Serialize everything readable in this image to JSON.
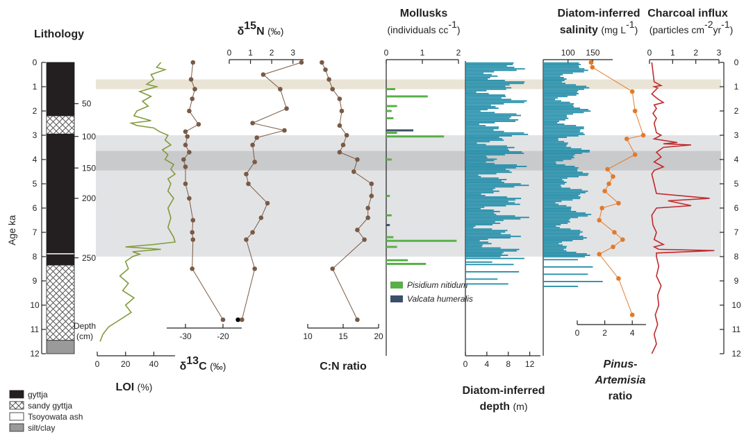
{
  "chart_data": {
    "type": "line",
    "shared_y": {
      "label": "Age ka",
      "range": [
        0,
        12
      ],
      "ticks": [
        0,
        1,
        2,
        3,
        4,
        5,
        6,
        7,
        8,
        9,
        10,
        11,
        12
      ]
    },
    "depth": {
      "label": "Depth",
      "unit": "(cm)",
      "ticks": [
        50,
        100,
        150,
        200,
        250
      ]
    },
    "colors": {
      "loi": "#7f9a3a",
      "isotope": "#7a5a45",
      "mollusk_green": "#59b048",
      "mollusk_dark": "#3c4f6a",
      "diatom": "#1f8ca8",
      "pine": "#e27a2a",
      "charcoal": "#c0282a"
    },
    "shaded_bands": [
      {
        "from": 0.7,
        "to": 1.1,
        "color": "#e9e4d6"
      },
      {
        "from": 3.0,
        "to": 8.0,
        "color": "#e2e3e5"
      },
      {
        "from": 3.65,
        "to": 4.45,
        "color": "#c9cacc"
      }
    ],
    "lithology": {
      "title": "Lithology",
      "units": [
        {
          "from": 0.0,
          "to": 2.2,
          "type": "gyttja"
        },
        {
          "from": 2.2,
          "to": 2.95,
          "type": "sandy gyttja"
        },
        {
          "from": 2.95,
          "to": 7.85,
          "type": "gyttja"
        },
        {
          "from": 7.85,
          "to": 7.92,
          "type": "Tsoyowata ash"
        },
        {
          "from": 7.92,
          "to": 8.35,
          "type": "gyttja"
        },
        {
          "from": 8.35,
          "to": 11.45,
          "type": "sandy gyttja"
        },
        {
          "from": 11.45,
          "to": 12.0,
          "type": "silt/clay"
        }
      ],
      "legend": [
        "gyttja",
        "sandy gyttja",
        "Tsoyowata ash",
        "silt/clay"
      ]
    },
    "panels": [
      {
        "id": "loi",
        "title": "LOI",
        "unit": "(%)",
        "xlim": [
          0,
          55
        ],
        "ticks": [
          0,
          20,
          40
        ],
        "age": [
          0.0,
          0.2,
          0.3,
          0.5,
          0.7,
          0.9,
          1.0,
          1.2,
          1.4,
          1.6,
          1.8,
          2.0,
          2.2,
          2.4,
          2.5,
          2.6,
          2.7,
          2.85,
          3.0,
          3.2,
          3.4,
          3.6,
          3.8,
          4.0,
          4.2,
          4.4,
          4.6,
          4.8,
          5.0,
          5.3,
          5.6,
          6.0,
          6.4,
          6.8,
          7.2,
          7.4,
          7.5,
          7.6,
          7.7,
          7.8,
          7.9,
          8.0,
          8.2,
          8.5,
          8.8,
          9.1,
          9.4,
          9.7,
          10.0,
          10.3,
          10.6,
          10.9,
          11.2,
          11.5
        ],
        "values": [
          45,
          42,
          48,
          38,
          40,
          35,
          42,
          30,
          38,
          32,
          36,
          28,
          26,
          38,
          24,
          28,
          40,
          44,
          50,
          48,
          52,
          46,
          50,
          48,
          54,
          52,
          55,
          50,
          52,
          50,
          54,
          50,
          52,
          50,
          54,
          55,
          40,
          20,
          45,
          25,
          30,
          25,
          20,
          22,
          16,
          22,
          18,
          26,
          20,
          24,
          16,
          8,
          4,
          2
        ]
      },
      {
        "id": "d13c",
        "title": "δ13C",
        "unit": "(‰)",
        "xlim": [
          -35,
          -15
        ],
        "ticks": [
          -30,
          -20
        ],
        "age": [
          0,
          0.7,
          1.1,
          1.5,
          2.0,
          2.55,
          2.85,
          3.05,
          3.4,
          3.7,
          4.0,
          4.3,
          5.0,
          5.6,
          6.5,
          7.0,
          7.3,
          8.5,
          10.6
        ],
        "values": [
          -28,
          -28.5,
          -27.5,
          -28.2,
          -29,
          -26.5,
          -30,
          -29.5,
          -30,
          -29,
          -30.5,
          -30,
          -30,
          -29,
          -28,
          -28.2,
          -28,
          -28.2,
          -20
        ]
      },
      {
        "id": "d15n",
        "title": "δ15N",
        "unit": "(‰)",
        "xlim": [
          0,
          3.5
        ],
        "ticks": [
          0,
          1,
          2,
          3
        ],
        "age": [
          0,
          0.5,
          1.1,
          1.9,
          2.5,
          2.8,
          3.1,
          3.4,
          4.1,
          4.6,
          5.0,
          5.8,
          6.4,
          7.0,
          7.3,
          8.5,
          10.6
        ],
        "values": [
          3.4,
          1.6,
          2.4,
          2.7,
          1.1,
          2.6,
          1.3,
          1.1,
          1.2,
          0.8,
          0.9,
          1.8,
          1.5,
          1.1,
          0.8,
          1.2,
          0.6
        ]
      },
      {
        "id": "cn",
        "title": "C:N ratio",
        "unit": "",
        "xlim": [
          10,
          20
        ],
        "ticks": [
          10,
          15,
          20
        ],
        "age": [
          0,
          0.3,
          0.7,
          1.1,
          1.5,
          2.0,
          2.6,
          3.0,
          3.4,
          3.7,
          4.0,
          4.5,
          5.0,
          5.5,
          6.0,
          6.4,
          6.9,
          7.3,
          8.5,
          10.6
        ],
        "values": [
          12,
          12.5,
          13,
          13.5,
          14.5,
          14.8,
          14.5,
          15.5,
          15,
          14.5,
          17,
          16.5,
          19,
          19,
          18.5,
          18.5,
          17,
          18,
          13.5,
          17
        ]
      },
      {
        "id": "mollusks",
        "title": "Mollusks",
        "unit": "(individuals cc",
        "unit_sup": "-1",
        "unit_end": ")",
        "xlim": [
          0,
          2
        ],
        "ticks": [
          0,
          1,
          2
        ],
        "series": [
          {
            "name": "Pisidium nitidum",
            "color": "#59b048"
          },
          {
            "name": "Valcata humeralis",
            "color": "#3c4f6a"
          }
        ],
        "green_bars": [
          [
            1.1,
            0.25
          ],
          [
            1.4,
            1.15
          ],
          [
            1.8,
            0.3
          ],
          [
            2.0,
            0.15
          ],
          [
            2.3,
            0.2
          ],
          [
            2.9,
            0.3
          ],
          [
            3.05,
            1.6
          ],
          [
            4.0,
            0.15
          ],
          [
            5.5,
            0.1
          ],
          [
            6.3,
            0.15
          ],
          [
            7.2,
            0.2
          ],
          [
            7.35,
            1.95
          ],
          [
            7.6,
            0.3
          ],
          [
            8.15,
            0.6
          ],
          [
            8.3,
            1.1
          ]
        ],
        "dark_bars": [
          [
            2.8,
            0.75
          ],
          [
            6.7,
            0.1
          ]
        ]
      },
      {
        "id": "depth",
        "title": "Diatom-inferred",
        "title2": "depth",
        "unit": "(m)",
        "xlim": [
          0,
          14
        ],
        "ticks": [
          0,
          4,
          8,
          12
        ]
      },
      {
        "id": "salinity",
        "title": "Diatom-inferred",
        "title2": "salinity",
        "unit": "(mg L",
        "unit_sup": "-1",
        "unit_end": ")",
        "xlim": [
          50,
          190
        ],
        "ticks": [
          100,
          150
        ]
      },
      {
        "id": "pine",
        "title": "Pinus-",
        "title2": "Artemisia",
        "title3": "ratio",
        "xlim": [
          0,
          5
        ],
        "ticks": [
          0,
          2,
          4
        ],
        "age": [
          0,
          0.2,
          1.2,
          2.0,
          3.0,
          3.15,
          3.8,
          4.4,
          4.7,
          5.0,
          5.3,
          5.8,
          6.0,
          6.5,
          7.0,
          7.3,
          7.6,
          7.9,
          8.9,
          10.4
        ],
        "values": [
          1,
          1.1,
          4,
          4.2,
          4.8,
          3.6,
          4.2,
          2.2,
          2.6,
          2.3,
          2,
          3,
          1.8,
          1.6,
          2.7,
          3.3,
          2.6,
          1.6,
          3.0,
          4.0
        ]
      },
      {
        "id": "charcoal",
        "title": "Charcoal influx",
        "unit": "(particles cm",
        "unit_sup": "-2",
        "unit_mid": "yr",
        "unit_sup2": "-1",
        "unit_end": ")",
        "xlim": [
          0,
          3
        ],
        "ticks": [
          0,
          1,
          2,
          3
        ],
        "age": [
          0,
          0.8,
          0.95,
          1.0,
          1.05,
          1.3,
          1.5,
          1.65,
          1.75,
          1.9,
          2.1,
          2.3,
          2.5,
          2.9,
          3.0,
          3.15,
          3.3,
          3.35,
          3.4,
          3.5,
          3.7,
          3.9,
          4.1,
          4.3,
          4.45,
          4.6,
          5.0,
          5.4,
          5.6,
          5.7,
          5.9,
          6.0,
          6.3,
          6.7,
          7.0,
          7.3,
          7.5,
          7.6,
          7.7,
          7.75,
          7.85,
          8.0,
          8.4,
          8.8,
          9.2,
          9.6,
          10.0,
          10.4,
          10.8,
          11.2,
          11.6,
          12.0
        ],
        "values": [
          0.1,
          0.2,
          0.5,
          0.2,
          0.35,
          0.1,
          0.35,
          0.6,
          0.2,
          0.3,
          0.15,
          0.3,
          0.2,
          0.3,
          0.5,
          0.2,
          1.2,
          0.6,
          1.8,
          0.6,
          0.3,
          0.5,
          0.2,
          0.6,
          0.2,
          0.1,
          0.2,
          0.3,
          2.6,
          0.8,
          1.8,
          0.3,
          0.1,
          0.15,
          0.3,
          0.2,
          0.6,
          0.2,
          0.4,
          2.8,
          0.3,
          0.3,
          0.4,
          0.3,
          0.5,
          0.35,
          0.4,
          0.25,
          0.35,
          0.2,
          0.3,
          0.1
        ]
      }
    ]
  }
}
